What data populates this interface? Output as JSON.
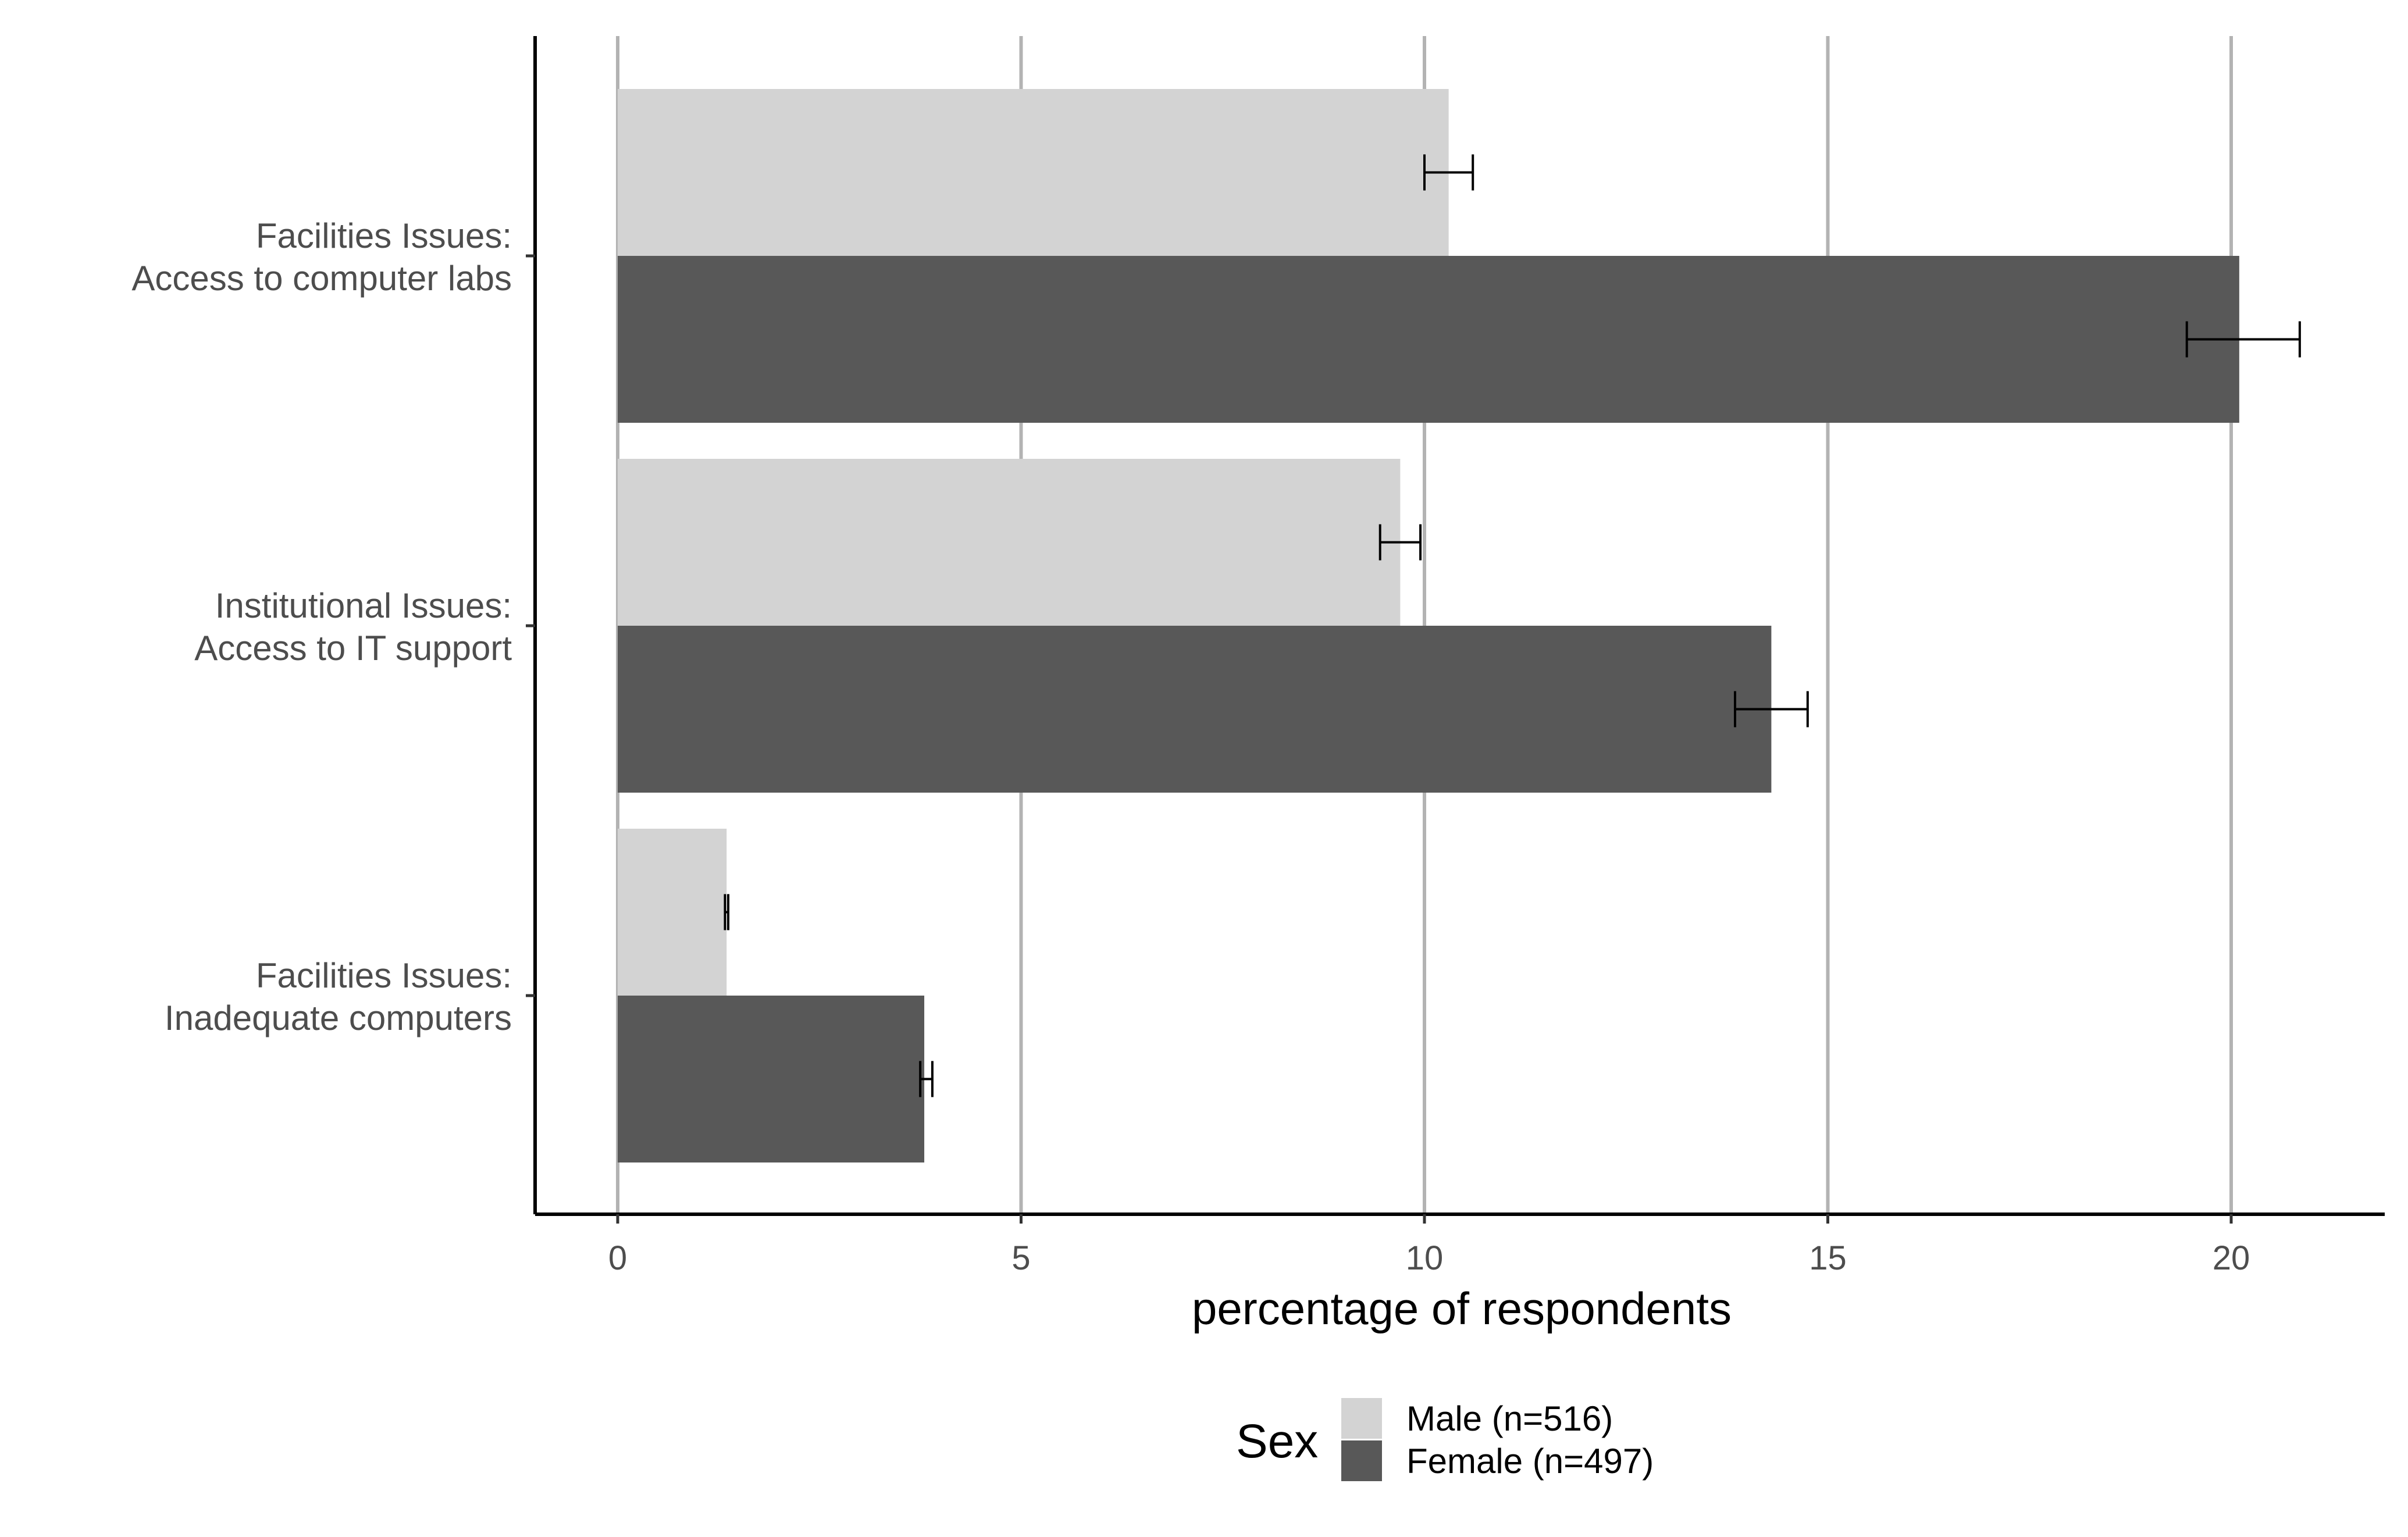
{
  "chart_data": {
    "type": "bar",
    "orientation": "horizontal",
    "categories": [
      [
        "Facilities Issues:",
        "Access to computer labs"
      ],
      [
        "Institutional Issues:",
        "Access to IT support"
      ],
      [
        "Facilities Issues:",
        "Inadequate computers"
      ]
    ],
    "series": [
      {
        "name": "Male (n=516)",
        "color": "#d3d3d3",
        "values": [
          10.3,
          9.7,
          1.35
        ],
        "error_low": [
          10.0,
          9.45,
          1.33
        ],
        "error_high": [
          10.6,
          9.95,
          1.37
        ]
      },
      {
        "name": "Female (n=497)",
        "color": "#585858",
        "values": [
          20.1,
          14.3,
          3.8
        ],
        "error_low": [
          19.45,
          13.85,
          3.75
        ],
        "error_high": [
          20.85,
          14.75,
          3.9
        ]
      }
    ],
    "xlabel": "percentage of respondents",
    "ylabel": "",
    "xlim": [
      -1.05,
      21.8
    ],
    "xticks": [
      0,
      5,
      10,
      15,
      20
    ],
    "grid": "vertical major",
    "legend": {
      "title": "Sex",
      "position": "bottom"
    }
  }
}
